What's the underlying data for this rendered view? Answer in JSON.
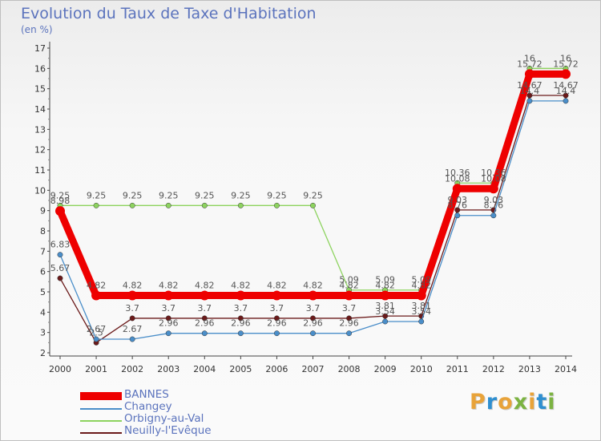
{
  "title": "Evolution du Taux de Taxe d'Habitation",
  "subtitle": "(en %)",
  "logo": {
    "text": "Proxiti",
    "colors": [
      "#e8a33a",
      "#2f8fd0",
      "#e8a33a",
      "#7cb342",
      "#e8a33a",
      "#2f8fd0",
      "#7cb342"
    ]
  },
  "chart_data": {
    "type": "line",
    "title": "Evolution du Taux de Taxe d'Habitation",
    "ylabel": "(en %)",
    "xlabel": "",
    "ylim": [
      2,
      17
    ],
    "yticks": [
      2,
      3,
      4,
      5,
      6,
      7,
      8,
      9,
      10,
      11,
      12,
      13,
      14,
      15,
      16,
      17
    ],
    "grid": false,
    "legend_position": "bottom-left",
    "x": [
      "2000",
      "2001",
      "2002",
      "2003",
      "2004",
      "2005",
      "2006",
      "2007",
      "2008",
      "2009",
      "2010",
      "2011",
      "2012",
      "2013",
      "2014"
    ],
    "series": [
      {
        "name": "BANNES",
        "color": "#ee0000",
        "values": [
          8.98,
          4.82,
          4.82,
          4.82,
          4.82,
          4.82,
          4.82,
          4.82,
          4.82,
          4.82,
          4.82,
          10.08,
          10.08,
          15.72,
          15.72
        ],
        "labels": [
          "8.98",
          "4.82",
          "4.82",
          "4.82",
          "4.82",
          "4.82",
          "4.82",
          "4.82",
          "4.82",
          "4.82",
          "4.82",
          "10.08",
          "10.08",
          "15.72",
          "15.72"
        ]
      },
      {
        "name": "Changey",
        "color": "#4a8ec9",
        "values": [
          6.83,
          2.67,
          2.67,
          2.96,
          2.96,
          2.96,
          2.96,
          2.96,
          2.96,
          3.54,
          3.54,
          8.76,
          8.76,
          14.4,
          14.4
        ],
        "labels": [
          "6.83",
          "2.67",
          "2.67",
          "2.96",
          "2.96",
          "2.96",
          "2.96",
          "2.96",
          "2.96",
          "3.54",
          "3.54",
          "8.76",
          "8.76",
          "14.4",
          "14.4"
        ]
      },
      {
        "name": "Orbigny-au-Val",
        "color": "#8dd35f",
        "values": [
          9.25,
          9.25,
          9.25,
          9.25,
          9.25,
          9.25,
          9.25,
          9.25,
          5.09,
          5.09,
          5.09,
          10.36,
          10.36,
          16,
          16
        ],
        "labels": [
          "9.25",
          "9.25",
          "9.25",
          "9.25",
          "9.25",
          "9.25",
          "9.25",
          "9.25",
          "5.09",
          "5.09",
          "5.09",
          "10.36",
          "10.36",
          "16",
          "16"
        ]
      },
      {
        "name": "Neuilly-l'Evêque",
        "color": "#6b1a1a",
        "values": [
          5.67,
          2.5,
          3.7,
          3.7,
          3.7,
          3.7,
          3.7,
          3.7,
          3.7,
          3.81,
          3.81,
          9.03,
          9.03,
          14.67,
          14.67
        ],
        "labels": [
          "5.67",
          "2.5",
          "3.7",
          "3.7",
          "3.7",
          "3.7",
          "3.7",
          "3.7",
          "3.7",
          "3.81",
          "3.81",
          "9.03",
          "9.03",
          "14.67",
          "14.67"
        ]
      }
    ]
  }
}
